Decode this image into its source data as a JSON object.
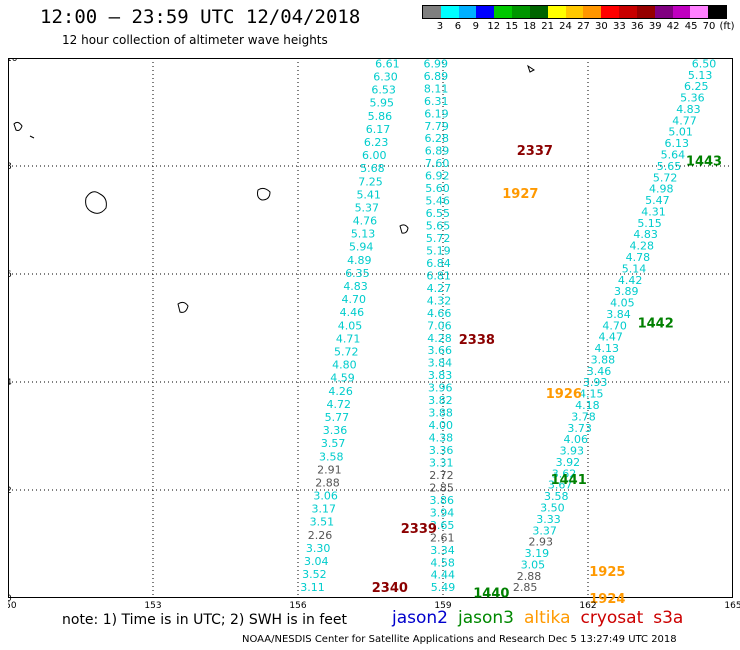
{
  "header": {
    "title": "12:00 – 23:59 UTC 12/04/2018",
    "subtitle": "12 hour collection of altimeter wave heights"
  },
  "colorbar": {
    "colors": [
      "#7f7f7f",
      "#00ffff",
      "#00b0ff",
      "#0000ff",
      "#00c800",
      "#009600",
      "#006400",
      "#ffff00",
      "#ffc800",
      "#ff9600",
      "#ff0000",
      "#c80000",
      "#960000",
      "#800080",
      "#c000c0",
      "#ff80ff",
      "#000000"
    ],
    "labels": [
      "3",
      "6",
      "9",
      "12",
      "15",
      "18",
      "21",
      "24",
      "27",
      "30",
      "33",
      "36",
      "39",
      "42",
      "45",
      "70",
      "(ft)"
    ]
  },
  "axes": {
    "x_ticks": [
      "150",
      "153",
      "156",
      "159",
      "162",
      "165"
    ],
    "y_ticks": [
      "0",
      "2",
      "4",
      "6",
      "8",
      "10"
    ]
  },
  "passes": [
    {
      "label": "2337",
      "color": "#8b0000",
      "lon": 160.9,
      "lat": 8.3
    },
    {
      "label": "1927",
      "color": "#ff9900",
      "lon": 160.6,
      "lat": 7.5
    },
    {
      "label": "1443",
      "color": "#008000",
      "lon": 164.4,
      "lat": 8.1
    },
    {
      "label": "1442",
      "color": "#008000",
      "lon": 163.4,
      "lat": 5.1
    },
    {
      "label": "2338",
      "color": "#8b0000",
      "lon": 159.7,
      "lat": 4.8
    },
    {
      "label": "1926",
      "color": "#ff9900",
      "lon": 161.5,
      "lat": 3.8
    },
    {
      "label": "1441",
      "color": "#008000",
      "lon": 161.6,
      "lat": 2.2
    },
    {
      "label": "2339",
      "color": "#8b0000",
      "lon": 158.5,
      "lat": 1.3
    },
    {
      "label": "2340",
      "color": "#8b0000",
      "lon": 157.9,
      "lat": 0.2
    },
    {
      "label": "1440",
      "color": "#008000",
      "lon": 160.0,
      "lat": 0.1
    },
    {
      "label": "1925",
      "color": "#ff9900",
      "lon": 162.4,
      "lat": 0.5
    },
    {
      "label": "1924",
      "color": "#ff9900",
      "lon": 162.4,
      "lat": 0.0
    }
  ],
  "tracks": [
    {
      "name": "jason2-track-a",
      "lon_start": 157.85,
      "lat_start": 9.9,
      "lon_end": 156.3,
      "lat_end": 0.2,
      "values": [
        "6.61",
        "6.30",
        "6.53",
        "5.95",
        "5.86",
        "6.17",
        "6.23",
        "6.00",
        "5.68",
        "7.25",
        "5.41",
        "5.37",
        "4.76",
        "5.13",
        "5.94",
        "4.89",
        "6.35",
        "4.83",
        "4.70",
        "4.46",
        "4.05",
        "4.71",
        "5.72",
        "4.80",
        "4.59",
        "4.26",
        "4.72",
        "5.77",
        "3.36",
        "3.57",
        "3.58",
        "2.91",
        "2.88",
        "3.06",
        "3.17",
        "3.51",
        "2.26",
        "3.30",
        "3.04",
        "3.52",
        "3.11"
      ],
      "color": "#00cccc"
    },
    {
      "name": "jason2-track-b",
      "lon_start": 158.85,
      "lat_start": 9.9,
      "lon_end": 159.0,
      "lat_end": 0.2,
      "values": [
        "6.99",
        "6.89",
        "8.11",
        "6.31",
        "6.19",
        "7.79",
        "6.28",
        "6.89",
        "7.60",
        "6.92",
        "5.60",
        "5.46",
        "6.55",
        "5.65",
        "5.72",
        "5.19",
        "6.84",
        "6.81",
        "4.27",
        "4.32",
        "4.66",
        "7.06",
        "4.28",
        "3.66",
        "3.84",
        "3.83",
        "3.96",
        "3.82",
        "3.88",
        "4.00",
        "4.38",
        "3.36",
        "3.31",
        "2.72",
        "2.85",
        "3.86",
        "3.94",
        "3.65",
        "2.61",
        "3.34",
        "4.58",
        "4.44",
        "5.49"
      ],
      "color": "#00cccc"
    },
    {
      "name": "jason3-track",
      "lon_start": 164.4,
      "lat_start": 9.9,
      "lon_end": 160.7,
      "lat_end": 0.2,
      "values": [
        "6.50",
        "5.13",
        "6.25",
        "5.36",
        "4.83",
        "4.77",
        "5.01",
        "6.13",
        "5.64",
        "5.65",
        "5.72",
        "4.98",
        "5.47",
        "4.31",
        "5.15",
        "4.83",
        "4.28",
        "4.78",
        "5.14",
        "4.42",
        "3.89",
        "4.05",
        "3.84",
        "4.70",
        "4.47",
        "4.13",
        "3.88",
        "3.46",
        "3.93",
        "4.15",
        "4.18",
        "3.78",
        "3.73",
        "4.06",
        "3.93",
        "3.92",
        "3.62",
        "3.67",
        "3.58",
        "3.50",
        "3.33",
        "3.37",
        "2.93",
        "3.19",
        "3.05",
        "2.88",
        "2.85"
      ],
      "color": "#00cccc"
    }
  ],
  "note": "note: 1) Time is in UTC; 2) SWH is in feet",
  "legend": [
    {
      "label": "jason2",
      "color": "#0000cc"
    },
    {
      "label": "jason3",
      "color": "#008800"
    },
    {
      "label": "altika",
      "color": "#ff9900"
    },
    {
      "label": "cryosat",
      "color": "#cc0000"
    },
    {
      "label": "s3a",
      "color": "#cc0000"
    }
  ],
  "footer": "NOAA/NESDIS Center for Satellite Applications and Research    Dec  5 13:27:49 UTC 2018"
}
